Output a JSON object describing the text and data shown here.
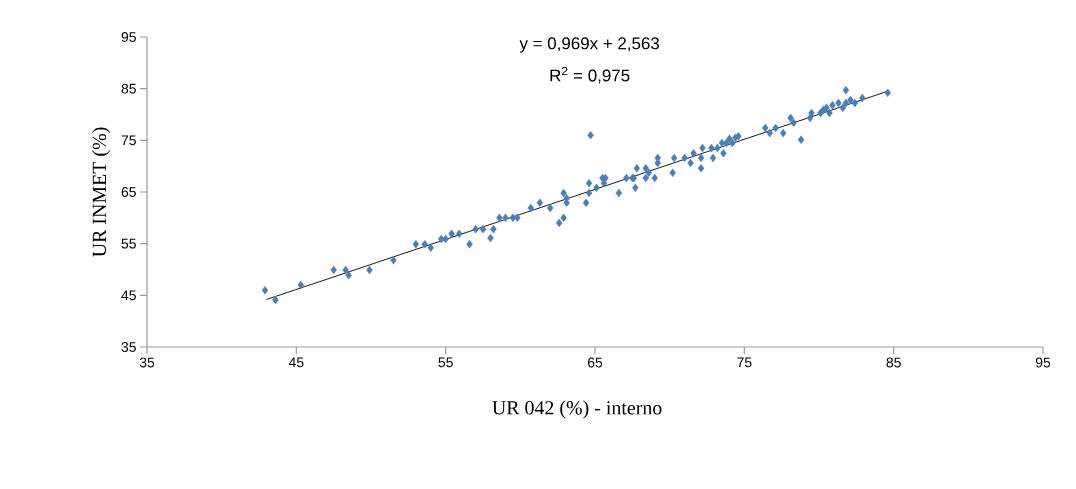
{
  "chart_data": {
    "type": "scatter",
    "xlabel": "UR 042 (%) -  interno",
    "ylabel": "UR INMET (%)",
    "annotations": [
      "y = 0,969x + 2,563",
      "R$^{2}$ = 0,975"
    ],
    "xlim": [
      35,
      95
    ],
    "ylim": [
      35,
      95
    ],
    "xticks": [
      35,
      45,
      55,
      65,
      75,
      85,
      95
    ],
    "yticks": [
      35,
      45,
      55,
      65,
      75,
      85,
      95
    ],
    "grid": false,
    "series": [
      {
        "color": "#4a7ebb",
        "marker": "diamond",
        "x": [
          42.9,
          43.6,
          45.3,
          47.5,
          48.3,
          48.5,
          49.9,
          51.5,
          53.0,
          53.6,
          54.0,
          54.7,
          55.0,
          55.4,
          55.9,
          56.6,
          57.0,
          57.5,
          58.0,
          58.2,
          58.6,
          59.0,
          59.5,
          59.8,
          60.7,
          61.3,
          62.0,
          62.6,
          62.9,
          62.9,
          63.1,
          63.1,
          64.4,
          64.6,
          64.7,
          64.6,
          65.1,
          65.5,
          65.6,
          65.7,
          66.6,
          67.1,
          67.5,
          67.6,
          67.8,
          67.7,
          68.4,
          68.4,
          68.6,
          69.0,
          69.2,
          69.2,
          70.2,
          70.3,
          71.0,
          71.4,
          71.6,
          72.1,
          72.1,
          72.2,
          72.8,
          72.9,
          73.2,
          73.5,
          73.6,
          73.8,
          74.0,
          74.2,
          74.4,
          74.6,
          76.4,
          76.7,
          77.1,
          77.6,
          78.1,
          78.3,
          78.8,
          79.4,
          79.5,
          80.1,
          80.3,
          80.5,
          80.7,
          80.9,
          81.3,
          81.6,
          81.8,
          81.8,
          82.1,
          82.4,
          82.9,
          84.6
        ],
        "values": [
          46.0,
          44.1,
          47.0,
          49.9,
          49.9,
          48.9,
          49.9,
          51.8,
          54.9,
          54.9,
          54.2,
          55.9,
          55.9,
          56.9,
          56.9,
          54.9,
          57.8,
          57.8,
          56.1,
          57.8,
          60.0,
          60.0,
          60.0,
          60.0,
          61.9,
          62.9,
          61.9,
          59.0,
          60.0,
          64.8,
          63.8,
          62.9,
          62.9,
          66.7,
          76.0,
          64.8,
          65.8,
          67.7,
          66.7,
          67.7,
          64.8,
          67.7,
          67.7,
          67.7,
          69.6,
          65.8,
          69.6,
          67.7,
          68.7,
          67.7,
          71.6,
          70.6,
          68.7,
          71.6,
          71.6,
          70.6,
          72.5,
          71.6,
          69.6,
          73.5,
          73.5,
          71.6,
          73.5,
          74.5,
          72.5,
          74.5,
          75.3,
          74.5,
          75.5,
          75.8,
          77.4,
          76.4,
          77.4,
          76.4,
          79.3,
          78.4,
          75.1,
          79.3,
          80.3,
          80.3,
          80.9,
          81.3,
          80.3,
          81.8,
          82.2,
          81.3,
          84.7,
          82.2,
          82.8,
          82.2,
          83.2,
          84.2
        ]
      },
      {
        "type": "line",
        "color": "#000000",
        "marker": "none",
        "line_style": "solid",
        "x": [
          43.0,
          84.7
        ],
        "values": [
          44.2,
          84.6
        ]
      }
    ]
  }
}
